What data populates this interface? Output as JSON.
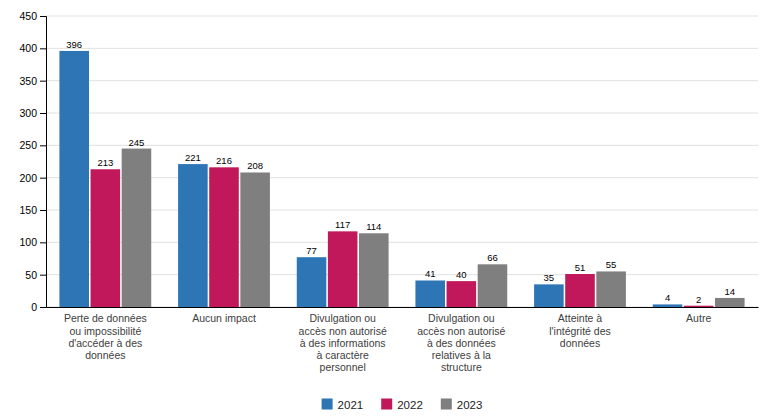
{
  "chart_data": {
    "type": "bar",
    "categories": [
      "Perte de données\nou impossibilité\nd'accéder à des\ndonnées",
      "Aucun impact",
      "Divulgation ou\naccès non autorisé\nà des informations\nà caractère\npersonnel",
      "Divulgation ou\naccès non autorisé\nà des données\nrelatives à la\nstructure",
      "Atteinte à\nl'intégrité des\ndonnées",
      "Autre"
    ],
    "series": [
      {
        "name": "2021",
        "color": "#2E75B6",
        "values": [
          396,
          221,
          77,
          41,
          35,
          4
        ]
      },
      {
        "name": "2022",
        "color": "#C0185A",
        "values": [
          213,
          216,
          117,
          40,
          51,
          2
        ]
      },
      {
        "name": "2023",
        "color": "#7F7F7F",
        "values": [
          245,
          208,
          114,
          66,
          55,
          14
        ]
      }
    ],
    "ylim": [
      0,
      450
    ],
    "yticks": [
      0,
      50,
      100,
      150,
      200,
      250,
      300,
      350,
      400,
      450
    ],
    "grid": true,
    "data_labels": true,
    "legend": "bottom"
  }
}
